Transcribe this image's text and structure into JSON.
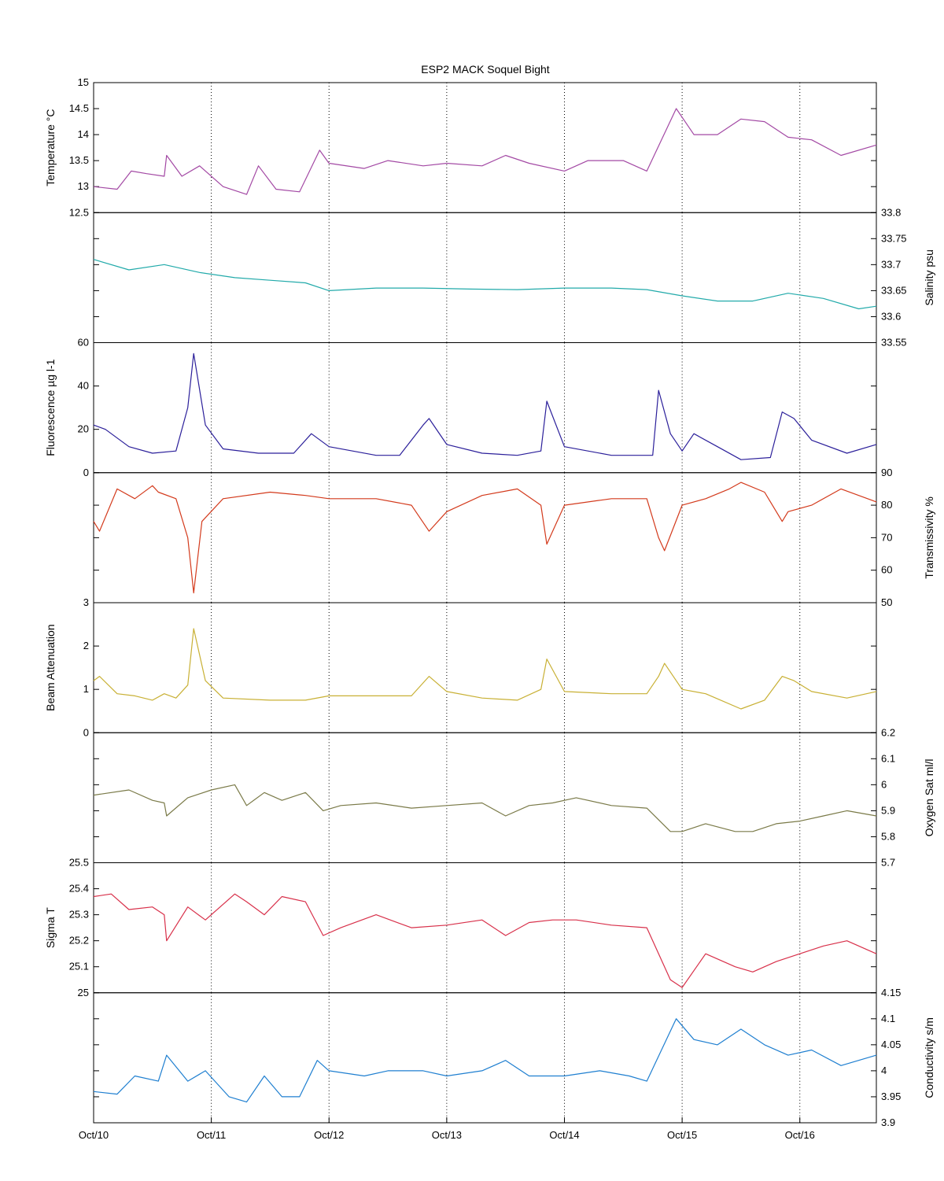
{
  "chart_data": {
    "type": "line",
    "title": "ESP2 MACK  Soquel Bight",
    "x_axis": {
      "tick_labels": [
        "Oct/10",
        "Oct/11",
        "Oct/12",
        "Oct/13",
        "Oct/14",
        "Oct/15",
        "Oct/16"
      ],
      "range_days": [
        10,
        16.65
      ],
      "gridlines": "dotted vertical at day ticks"
    },
    "panels": [
      {
        "name": "Temperature °C",
        "axis_side": "left",
        "color": "#a349a4",
        "ylim": [
          12.5,
          15
        ],
        "ticks": [
          12.5,
          13,
          13.5,
          14,
          14.5,
          15
        ],
        "tick_labels": [
          "12.5",
          "13",
          "13.5",
          "14",
          "14.5",
          "15"
        ],
        "x": [
          10.0,
          10.2,
          10.32,
          10.45,
          10.6,
          10.62,
          10.75,
          10.9,
          11.1,
          11.3,
          11.4,
          11.55,
          11.75,
          11.92,
          12.0,
          12.3,
          12.5,
          12.8,
          13.0,
          13.3,
          13.5,
          13.7,
          14.0,
          14.2,
          14.5,
          14.7,
          14.95,
          15.1,
          15.3,
          15.5,
          15.7,
          15.9,
          16.1,
          16.35,
          16.65
        ],
        "y": [
          13.0,
          12.95,
          13.3,
          13.25,
          13.2,
          13.6,
          13.2,
          13.4,
          13.0,
          12.85,
          13.4,
          12.95,
          12.9,
          13.7,
          13.45,
          13.35,
          13.5,
          13.4,
          13.45,
          13.4,
          13.6,
          13.45,
          13.3,
          13.5,
          13.5,
          13.3,
          14.5,
          14.0,
          14.0,
          14.3,
          14.25,
          13.95,
          13.9,
          13.6,
          13.8
        ]
      },
      {
        "name": "Salinity psu",
        "axis_side": "right",
        "color": "#22aaaa",
        "ylim": [
          33.55,
          33.8
        ],
        "ticks": [
          33.55,
          33.6,
          33.65,
          33.7,
          33.75,
          33.8
        ],
        "tick_labels": [
          "33.55",
          "33.6",
          "33.65",
          "33.7",
          "33.75",
          "33.8"
        ],
        "x": [
          10.0,
          10.3,
          10.6,
          10.9,
          11.2,
          11.5,
          11.8,
          12.0,
          12.4,
          12.8,
          13.2,
          13.6,
          14.0,
          14.4,
          14.7,
          15.0,
          15.3,
          15.6,
          15.9,
          16.2,
          16.5,
          16.65
        ],
        "y": [
          33.71,
          33.69,
          33.7,
          33.685,
          33.675,
          33.67,
          33.665,
          33.65,
          33.655,
          33.655,
          33.653,
          33.652,
          33.655,
          33.655,
          33.652,
          33.64,
          33.63,
          33.63,
          33.645,
          33.635,
          33.615,
          33.62
        ]
      },
      {
        "name": "Fluorescence µg l-1",
        "axis_side": "left",
        "color": "#2b1f9a",
        "ylim": [
          0,
          60
        ],
        "ticks": [
          0,
          20,
          40,
          60
        ],
        "tick_labels": [
          "0",
          "20",
          "40",
          "60"
        ],
        "x": [
          10.0,
          10.1,
          10.3,
          10.5,
          10.7,
          10.8,
          10.85,
          10.95,
          11.1,
          11.4,
          11.7,
          11.85,
          12.0,
          12.4,
          12.6,
          12.8,
          12.85,
          13.0,
          13.3,
          13.6,
          13.8,
          13.85,
          14.0,
          14.4,
          14.75,
          14.8,
          14.9,
          15.0,
          15.1,
          15.3,
          15.5,
          15.75,
          15.85,
          15.95,
          16.1,
          16.4,
          16.65
        ],
        "y": [
          22,
          20,
          12,
          9,
          10,
          30,
          55,
          22,
          11,
          9,
          9,
          18,
          12,
          8,
          8,
          22,
          25,
          13,
          9,
          8,
          10,
          33,
          12,
          8,
          8,
          38,
          18,
          10,
          18,
          12,
          6,
          7,
          28,
          25,
          15,
          9,
          13
        ]
      },
      {
        "name": "Transmissivity %",
        "axis_side": "right",
        "color": "#d33a1c",
        "ylim": [
          50,
          90
        ],
        "ticks": [
          50,
          60,
          70,
          80,
          90
        ],
        "tick_labels": [
          "50",
          "60",
          "70",
          "80",
          "90"
        ],
        "x": [
          10.0,
          10.05,
          10.2,
          10.35,
          10.5,
          10.55,
          10.7,
          10.8,
          10.85,
          10.92,
          11.1,
          11.5,
          11.8,
          12.0,
          12.4,
          12.7,
          12.85,
          13.0,
          13.3,
          13.6,
          13.8,
          13.85,
          14.0,
          14.4,
          14.7,
          14.8,
          14.85,
          15.0,
          15.2,
          15.4,
          15.5,
          15.7,
          15.85,
          15.9,
          16.1,
          16.35,
          16.65
        ],
        "y": [
          75,
          72,
          85,
          82,
          86,
          84,
          82,
          70,
          53,
          75,
          82,
          84,
          83,
          82,
          82,
          80,
          72,
          78,
          83,
          85,
          80,
          68,
          80,
          82,
          82,
          70,
          66,
          80,
          82,
          85,
          87,
          84,
          75,
          78,
          80,
          85,
          81
        ]
      },
      {
        "name": "Beam Attenuation",
        "axis_side": "left",
        "color": "#c8b034",
        "ylim": [
          0,
          3
        ],
        "ticks": [
          0,
          1,
          2,
          3
        ],
        "tick_labels": [
          "0",
          "1",
          "2",
          "3"
        ],
        "x": [
          10.0,
          10.05,
          10.2,
          10.35,
          10.5,
          10.6,
          10.7,
          10.8,
          10.85,
          10.95,
          11.1,
          11.5,
          11.8,
          12.0,
          12.4,
          12.7,
          12.85,
          13.0,
          13.3,
          13.6,
          13.8,
          13.85,
          14.0,
          14.4,
          14.7,
          14.8,
          14.85,
          15.0,
          15.2,
          15.5,
          15.7,
          15.85,
          15.95,
          16.1,
          16.4,
          16.65
        ],
        "y": [
          1.2,
          1.3,
          0.9,
          0.85,
          0.75,
          0.9,
          0.8,
          1.1,
          2.4,
          1.2,
          0.8,
          0.75,
          0.75,
          0.85,
          0.85,
          0.85,
          1.3,
          0.95,
          0.8,
          0.75,
          1.0,
          1.7,
          0.95,
          0.9,
          0.9,
          1.3,
          1.6,
          1.0,
          0.9,
          0.55,
          0.75,
          1.3,
          1.2,
          0.95,
          0.8,
          0.95
        ]
      },
      {
        "name": "Oxygen Sat ml/l",
        "axis_side": "right",
        "color": "#7a7a48",
        "ylim": [
          5.7,
          6.2
        ],
        "ticks": [
          5.7,
          5.8,
          5.9,
          6.0,
          6.1,
          6.2
        ],
        "tick_labels": [
          "5.7",
          "5.8",
          "5.9",
          "6",
          "6.1",
          "6.2"
        ],
        "x": [
          10.0,
          10.3,
          10.5,
          10.6,
          10.62,
          10.8,
          11.0,
          11.2,
          11.3,
          11.45,
          11.6,
          11.8,
          11.95,
          12.1,
          12.4,
          12.7,
          13.0,
          13.3,
          13.5,
          13.7,
          13.9,
          14.1,
          14.4,
          14.7,
          14.9,
          15.0,
          15.2,
          15.45,
          15.6,
          15.8,
          16.0,
          16.2,
          16.4,
          16.65
        ],
        "y": [
          5.96,
          5.98,
          5.94,
          5.93,
          5.88,
          5.95,
          5.98,
          6.0,
          5.92,
          5.97,
          5.94,
          5.97,
          5.9,
          5.92,
          5.93,
          5.91,
          5.92,
          5.93,
          5.88,
          5.92,
          5.93,
          5.95,
          5.92,
          5.91,
          5.82,
          5.82,
          5.85,
          5.82,
          5.82,
          5.85,
          5.86,
          5.88,
          5.9,
          5.88
        ]
      },
      {
        "name": "Sigma T",
        "axis_side": "left",
        "color": "#d8304a",
        "ylim": [
          25,
          25.5
        ],
        "ticks": [
          25,
          25.1,
          25.2,
          25.3,
          25.4,
          25.5
        ],
        "tick_labels": [
          "25",
          "25.1",
          "25.2",
          "25.3",
          "25.4",
          "25.5"
        ],
        "x": [
          10.0,
          10.15,
          10.3,
          10.5,
          10.6,
          10.62,
          10.8,
          10.95,
          11.2,
          11.3,
          11.45,
          11.6,
          11.8,
          11.95,
          12.1,
          12.4,
          12.7,
          13.0,
          13.3,
          13.5,
          13.7,
          13.9,
          14.1,
          14.4,
          14.7,
          14.9,
          15.0,
          15.2,
          15.45,
          15.6,
          15.8,
          16.0,
          16.2,
          16.4,
          16.65
        ],
        "y": [
          25.37,
          25.38,
          25.32,
          25.33,
          25.3,
          25.2,
          25.33,
          25.28,
          25.38,
          25.35,
          25.3,
          25.37,
          25.35,
          25.22,
          25.25,
          25.3,
          25.25,
          25.26,
          25.28,
          25.22,
          25.27,
          25.28,
          25.28,
          25.26,
          25.25,
          25.05,
          25.02,
          25.15,
          25.1,
          25.08,
          25.12,
          25.15,
          25.18,
          25.2,
          25.15
        ]
      },
      {
        "name": "Conductivity s/m",
        "axis_side": "right",
        "color": "#1f7fd0",
        "ylim": [
          3.9,
          4.15
        ],
        "ticks": [
          3.9,
          3.95,
          4.0,
          4.05,
          4.1,
          4.15
        ],
        "tick_labels": [
          "3.9",
          "3.95",
          "4",
          "4.05",
          "4.1",
          "4.15"
        ],
        "x": [
          10.0,
          10.2,
          10.35,
          10.55,
          10.62,
          10.8,
          10.95,
          11.15,
          11.3,
          11.45,
          11.6,
          11.75,
          11.9,
          12.0,
          12.3,
          12.5,
          12.8,
          13.0,
          13.3,
          13.5,
          13.7,
          14.0,
          14.3,
          14.55,
          14.7,
          14.95,
          15.1,
          15.3,
          15.5,
          15.7,
          15.9,
          16.1,
          16.35,
          16.65
        ],
        "y": [
          3.96,
          3.955,
          3.99,
          3.98,
          4.03,
          3.98,
          4.0,
          3.95,
          3.94,
          3.99,
          3.95,
          3.95,
          4.02,
          4.0,
          3.99,
          4.0,
          4.0,
          3.99,
          4.0,
          4.02,
          3.99,
          3.99,
          4.0,
          3.99,
          3.98,
          4.1,
          4.06,
          4.05,
          4.08,
          4.05,
          4.03,
          4.04,
          4.01,
          4.03
        ]
      }
    ]
  }
}
